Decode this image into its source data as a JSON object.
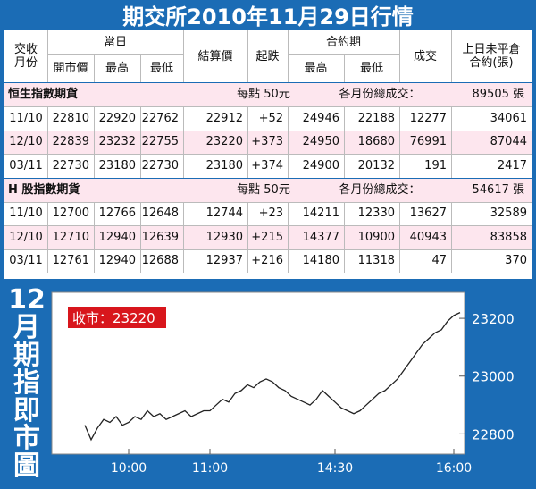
{
  "header": {
    "title": "期交所2010年11月29日行情"
  },
  "table": {
    "head": {
      "month": "交收月份",
      "day": "當日",
      "open": "開市價",
      "high": "最高",
      "low": "最低",
      "settle": "結算價",
      "change": "起跌",
      "contract": "合約期",
      "chigh": "最高",
      "clow": "最低",
      "volume": "成交",
      "oi": "上日未平倉合約(張)"
    },
    "sections": [
      {
        "name": "恒生指數期貨",
        "point": "每點 50元",
        "total_label": "各月份總成交：",
        "total": "89505 張",
        "rows": [
          [
            "11/10",
            "22810",
            "22920",
            "22762",
            "22912",
            "+52",
            "24946",
            "22188",
            "12277",
            "34061"
          ],
          [
            "12/10",
            "22839",
            "23232",
            "22755",
            "23220",
            "+373",
            "24950",
            "18680",
            "76991",
            "87044"
          ],
          [
            "03/11",
            "22730",
            "23180",
            "22730",
            "23180",
            "+374",
            "24900",
            "20132",
            "191",
            "2417"
          ]
        ]
      },
      {
        "name": "H 股指數期貨",
        "point": "每點 50元",
        "total_label": "各月份總成交：",
        "total": "54617 張",
        "rows": [
          [
            "11/10",
            "12700",
            "12766",
            "12648",
            "12744",
            "+23",
            "14211",
            "12330",
            "13627",
            "32589"
          ],
          [
            "12/10",
            "12710",
            "12940",
            "12639",
            "12930",
            "+215",
            "14377",
            "10900",
            "40943",
            "83858"
          ],
          [
            "03/11",
            "12761",
            "12940",
            "12688",
            "12937",
            "+216",
            "14180",
            "11318",
            "47",
            "370"
          ]
        ]
      }
    ]
  },
  "chart_data": {
    "type": "line",
    "title": "12月期指即市圖",
    "annotation": "收市：23220",
    "color": "#222222",
    "categories": [
      null,
      null,
      null,
      null,
      null,
      null,
      null,
      "10:00",
      null,
      null,
      null,
      null,
      null,
      null,
      null,
      null,
      null,
      null,
      null,
      null,
      "11:00",
      null,
      null,
      null,
      null,
      null,
      null,
      null,
      null,
      null,
      null,
      null,
      null,
      null,
      null,
      null,
      null,
      null,
      null,
      null,
      "14:30",
      null,
      null,
      null,
      null,
      null,
      null,
      null,
      null,
      null,
      null,
      null,
      null,
      null,
      null,
      null,
      null,
      null,
      null,
      "16:00",
      null
    ],
    "values": [
      22830,
      22780,
      22820,
      22850,
      22840,
      22860,
      22830,
      22840,
      22860,
      22850,
      22880,
      22860,
      22870,
      22850,
      22860,
      22870,
      22880,
      22860,
      22870,
      22880,
      22880,
      22900,
      22920,
      22910,
      22940,
      22950,
      22970,
      22960,
      22980,
      22990,
      22980,
      22960,
      22950,
      22930,
      22920,
      22910,
      22900,
      22920,
      22950,
      22930,
      22910,
      22890,
      22880,
      22870,
      22880,
      22900,
      22920,
      22940,
      22950,
      22970,
      22990,
      23020,
      23050,
      23080,
      23110,
      23130,
      23150,
      23160,
      23190,
      23210,
      23220
    ],
    "ylim": [
      22730,
      23290
    ],
    "yticks": [
      22800,
      23000,
      23200
    ]
  }
}
